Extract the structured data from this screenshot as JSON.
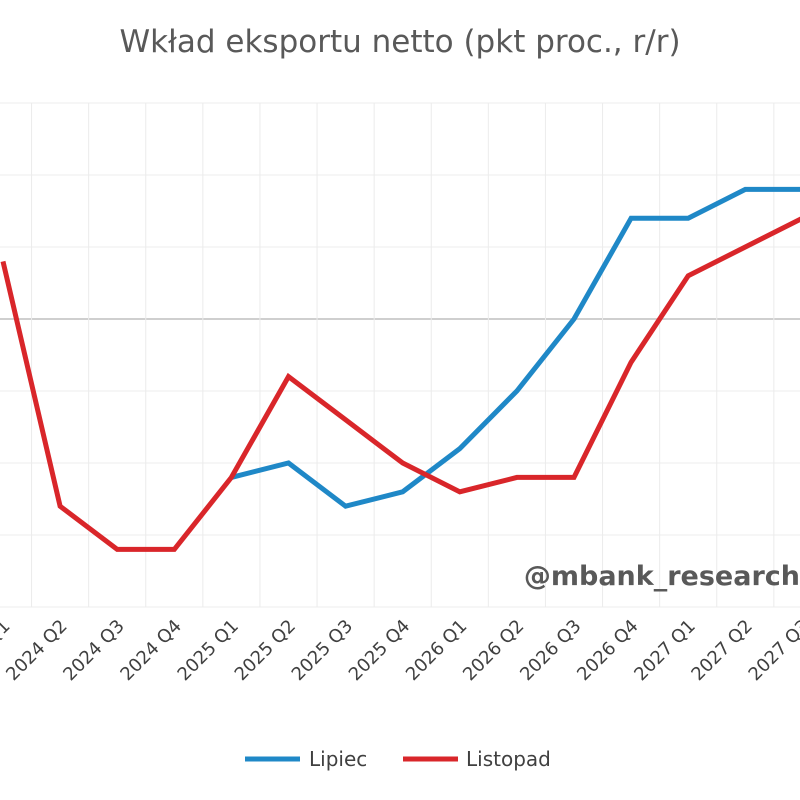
{
  "title": "Wkład eksportu netto (pkt proc., r/r)",
  "watermark": "@mbank_research",
  "colors": {
    "lipiec": "#1f88c7",
    "listopad": "#d9262a",
    "grid": "#ececec",
    "zero": "#bfbfbf"
  },
  "chart_data": {
    "type": "line",
    "title": "Wkład eksportu netto (pkt proc., r/r)",
    "xlabel": "",
    "ylabel": "",
    "categories": [
      "2024 Q1",
      "2024 Q2",
      "2024 Q3",
      "2024 Q4",
      "2025 Q1",
      "2025 Q2",
      "2025 Q3",
      "2025 Q4",
      "2026 Q1",
      "2026 Q2",
      "2026 Q3",
      "2026 Q4",
      "2027 Q1",
      "2027 Q2",
      "2027 Q3",
      "2027 Q4"
    ],
    "ylim": [
      -2.0,
      1.5
    ],
    "grid": true,
    "legend": "bottom",
    "series": [
      {
        "name": "Lipiec",
        "color": "#1f88c7",
        "values": [
          null,
          null,
          null,
          null,
          -1.1,
          -1.0,
          -1.3,
          -1.2,
          -0.9,
          -0.5,
          0.0,
          0.7,
          0.7,
          0.9,
          0.9,
          0.9
        ]
      },
      {
        "name": "Listopad",
        "color": "#d9262a",
        "values": [
          0.4,
          -1.3,
          -1.6,
          -1.6,
          -1.1,
          -0.4,
          -0.7,
          -1.0,
          -1.2,
          -1.1,
          -1.1,
          -0.3,
          0.3,
          0.5,
          0.7,
          0.8
        ]
      }
    ]
  }
}
